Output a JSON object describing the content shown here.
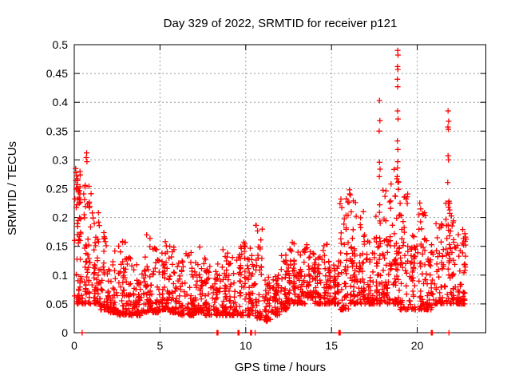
{
  "figure": {
    "background": "#ffffff"
  },
  "chart_data": {
    "type": "scatter",
    "title": "Day 329 of 2022, SRMTID for receiver p121",
    "xlabel": "GPS time / hours",
    "ylabel": "SRMTID / TECUs",
    "xlim": [
      0,
      24
    ],
    "ylim": [
      0,
      0.5
    ],
    "x_ticks": [
      0,
      5,
      10,
      15,
      20
    ],
    "x_tick_labels": [
      "0",
      "5",
      "10",
      "15",
      "20"
    ],
    "y_ticks": [
      0,
      0.05,
      0.1,
      0.15,
      0.2,
      0.25,
      0.3,
      0.35,
      0.4,
      0.45,
      0.5
    ],
    "y_tick_labels": [
      "0",
      "0.05",
      "0.1",
      "0.15",
      "0.2",
      "0.25",
      "0.3",
      "0.35",
      "0.4",
      "0.45",
      "0.5"
    ],
    "grid": true,
    "legend": false,
    "marker": {
      "shape": "plus",
      "color": "#ff0000",
      "size": 7,
      "stroke_width": 1.3
    },
    "axis_color": "#000000",
    "grid_color": "#999999",
    "seed": 329,
    "band_bins": [
      [
        0.0,
        0.5,
        0.05,
        0.285,
        55
      ],
      [
        0.5,
        1.0,
        0.05,
        0.27,
        50
      ],
      [
        1.0,
        1.5,
        0.05,
        0.21,
        46
      ],
      [
        1.5,
        2.0,
        0.04,
        0.175,
        46
      ],
      [
        2.0,
        2.5,
        0.035,
        0.15,
        44
      ],
      [
        2.5,
        3.0,
        0.03,
        0.16,
        44
      ],
      [
        3.0,
        3.5,
        0.03,
        0.15,
        44
      ],
      [
        3.5,
        4.0,
        0.03,
        0.12,
        40
      ],
      [
        4.0,
        4.5,
        0.035,
        0.17,
        44
      ],
      [
        4.5,
        5.0,
        0.035,
        0.155,
        42
      ],
      [
        5.0,
        5.5,
        0.04,
        0.165,
        44
      ],
      [
        5.5,
        6.0,
        0.035,
        0.15,
        42
      ],
      [
        6.0,
        6.5,
        0.03,
        0.125,
        40
      ],
      [
        6.5,
        7.0,
        0.03,
        0.14,
        42
      ],
      [
        7.0,
        7.5,
        0.035,
        0.15,
        44
      ],
      [
        7.5,
        8.0,
        0.03,
        0.135,
        42
      ],
      [
        8.0,
        8.5,
        0.03,
        0.12,
        40
      ],
      [
        8.5,
        9.0,
        0.03,
        0.15,
        44
      ],
      [
        9.0,
        9.5,
        0.03,
        0.135,
        40
      ],
      [
        9.5,
        10.0,
        0.03,
        0.16,
        42
      ],
      [
        10.0,
        10.5,
        0.03,
        0.15,
        44
      ],
      [
        10.5,
        11.0,
        0.025,
        0.2,
        44
      ],
      [
        11.0,
        11.5,
        0.02,
        0.1,
        40
      ],
      [
        11.5,
        12.0,
        0.03,
        0.11,
        40
      ],
      [
        12.0,
        12.5,
        0.04,
        0.14,
        44
      ],
      [
        12.5,
        13.0,
        0.05,
        0.165,
        44
      ],
      [
        13.0,
        13.5,
        0.05,
        0.145,
        44
      ],
      [
        13.5,
        14.0,
        0.06,
        0.155,
        44
      ],
      [
        14.0,
        14.5,
        0.05,
        0.135,
        44
      ],
      [
        14.5,
        15.0,
        0.05,
        0.165,
        44
      ],
      [
        15.0,
        15.5,
        0.05,
        0.125,
        40
      ],
      [
        15.5,
        16.0,
        0.04,
        0.235,
        50
      ],
      [
        16.0,
        16.5,
        0.05,
        0.25,
        50
      ],
      [
        16.5,
        17.0,
        0.05,
        0.22,
        46
      ],
      [
        17.0,
        17.5,
        0.05,
        0.16,
        40
      ],
      [
        17.5,
        18.0,
        0.05,
        0.21,
        46
      ],
      [
        18.0,
        18.5,
        0.05,
        0.26,
        50
      ],
      [
        18.5,
        19.0,
        0.05,
        0.3,
        50
      ],
      [
        19.0,
        19.5,
        0.04,
        0.25,
        46
      ],
      [
        19.5,
        20.0,
        0.04,
        0.17,
        40
      ],
      [
        20.0,
        20.5,
        0.04,
        0.22,
        42
      ],
      [
        20.5,
        21.0,
        0.04,
        0.17,
        40
      ],
      [
        21.0,
        21.5,
        0.05,
        0.21,
        44
      ],
      [
        21.5,
        22.0,
        0.05,
        0.23,
        44
      ],
      [
        22.0,
        22.5,
        0.05,
        0.2,
        44
      ],
      [
        22.5,
        22.85,
        0.05,
        0.18,
        36
      ]
    ],
    "outlier_points": [
      [
        0.08,
        0.285
      ],
      [
        0.1,
        0.278
      ],
      [
        0.13,
        0.272
      ],
      [
        0.09,
        0.264
      ],
      [
        0.17,
        0.257
      ],
      [
        0.12,
        0.251
      ],
      [
        0.3,
        0.247
      ],
      [
        0.33,
        0.241
      ],
      [
        0.28,
        0.234
      ],
      [
        0.15,
        0.222
      ],
      [
        0.72,
        0.312
      ],
      [
        0.7,
        0.304
      ],
      [
        0.74,
        0.297
      ],
      [
        0.55,
        0.241
      ],
      [
        0.6,
        0.231
      ],
      [
        0.85,
        0.224
      ],
      [
        0.88,
        0.217
      ],
      [
        1.05,
        0.208
      ],
      [
        1.1,
        0.199
      ],
      [
        1.42,
        0.192
      ],
      [
        1.46,
        0.186
      ],
      [
        15.55,
        0.232
      ],
      [
        15.5,
        0.224
      ],
      [
        15.6,
        0.217
      ],
      [
        16.05,
        0.248
      ],
      [
        16.1,
        0.239
      ],
      [
        15.95,
        0.227
      ],
      [
        17.8,
        0.403
      ],
      [
        17.82,
        0.368
      ],
      [
        17.78,
        0.35
      ],
      [
        17.8,
        0.296
      ],
      [
        17.83,
        0.284
      ],
      [
        17.79,
        0.271
      ],
      [
        17.81,
        0.222
      ],
      [
        17.8,
        0.209
      ],
      [
        17.82,
        0.194
      ],
      [
        18.86,
        0.49
      ],
      [
        18.88,
        0.482
      ],
      [
        18.85,
        0.462
      ],
      [
        18.87,
        0.457
      ],
      [
        18.84,
        0.44
      ],
      [
        18.86,
        0.427
      ],
      [
        18.85,
        0.385
      ],
      [
        18.88,
        0.371
      ],
      [
        18.84,
        0.333
      ],
      [
        18.87,
        0.318
      ],
      [
        18.86,
        0.297
      ],
      [
        18.85,
        0.286
      ],
      [
        18.83,
        0.271
      ],
      [
        18.88,
        0.261
      ],
      [
        18.9,
        0.249
      ],
      [
        21.8,
        0.385
      ],
      [
        21.83,
        0.367
      ],
      [
        21.79,
        0.357
      ],
      [
        21.81,
        0.353
      ],
      [
        21.8,
        0.307
      ],
      [
        21.82,
        0.3
      ],
      [
        21.78,
        0.261
      ],
      [
        21.81,
        0.225
      ],
      [
        20.15,
        0.225
      ],
      [
        20.2,
        0.215
      ],
      [
        20.1,
        0.205
      ]
    ],
    "zero_value_hours": [
      0.46,
      8.32,
      8.35,
      8.38,
      9.55,
      9.58,
      9.61,
      10.28,
      10.31,
      10.34,
      10.55,
      15.43,
      15.47,
      15.51,
      20.82,
      20.85,
      20.88,
      21.85
    ]
  }
}
